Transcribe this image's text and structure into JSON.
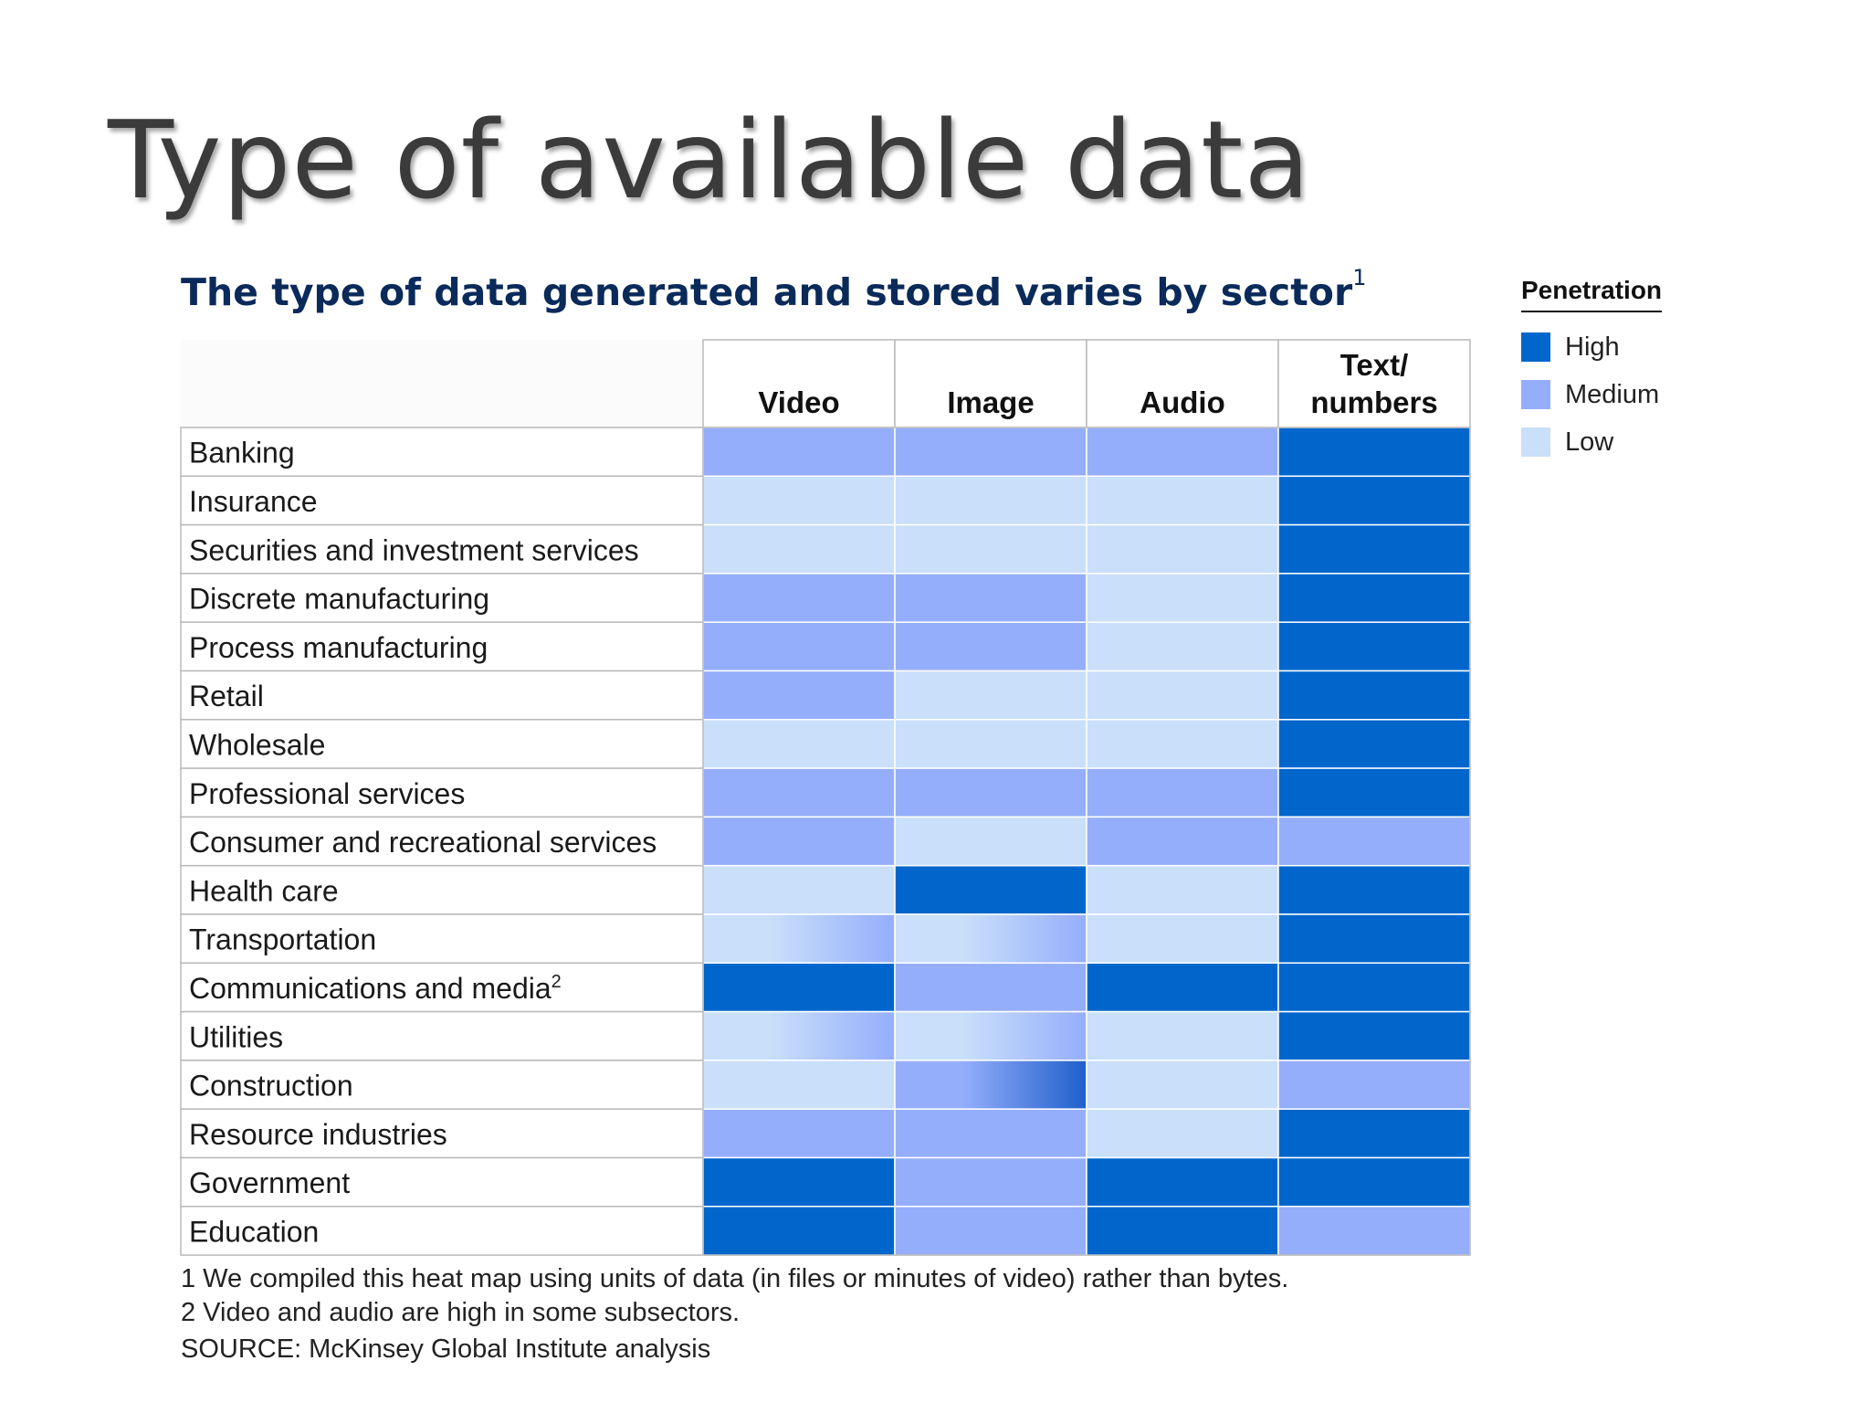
{
  "page": {
    "heading": "Type of available data"
  },
  "legend": {
    "title": "Penetration",
    "items": [
      {
        "label": "High",
        "color": "#0066cc"
      },
      {
        "label": "Medium",
        "color": "#95aefb"
      },
      {
        "label": "Low",
        "color": "#c9dffa"
      }
    ]
  },
  "footnotes": [
    "1  We compiled this heat map using units of data (in files or minutes of video) rather than bytes.",
    "2  Video and audio are high in some subsectors.",
    "SOURCE: McKinsey Global Institute analysis"
  ],
  "chart_data": {
    "type": "heatmap",
    "title": "The type of data generated and stored varies by sector",
    "title_footnote": "1",
    "columns": [
      "Video",
      "Image",
      "Audio",
      "Text/ numbers"
    ],
    "legend_title": "Penetration",
    "levels": [
      "High",
      "Medium",
      "Low"
    ],
    "rows": [
      {
        "sector": "Banking",
        "values": [
          "Medium",
          "Medium",
          "Medium",
          "High"
        ]
      },
      {
        "sector": "Insurance",
        "values": [
          "Low",
          "Low",
          "Low",
          "High"
        ]
      },
      {
        "sector": "Securities and investment services",
        "values": [
          "Low",
          "Low",
          "Low",
          "High"
        ]
      },
      {
        "sector": "Discrete manufacturing",
        "values": [
          "Medium",
          "Medium",
          "Low",
          "High"
        ]
      },
      {
        "sector": "Process manufacturing",
        "values": [
          "Medium",
          "Medium",
          "Low",
          "High"
        ]
      },
      {
        "sector": "Retail",
        "values": [
          "Medium",
          "Low",
          "Low",
          "High"
        ]
      },
      {
        "sector": "Wholesale",
        "values": [
          "Low",
          "Low",
          "Low",
          "High"
        ]
      },
      {
        "sector": "Professional services",
        "values": [
          "Medium",
          "Medium",
          "Medium",
          "High"
        ]
      },
      {
        "sector": "Consumer and recreational services",
        "values": [
          "Medium",
          "Low",
          "Medium",
          "Medium"
        ]
      },
      {
        "sector": "Health care",
        "values": [
          "Low",
          "High",
          "Low",
          "High"
        ]
      },
      {
        "sector": "Transportation",
        "values": [
          "Low-Medium",
          "Low-Medium",
          "Low",
          "High"
        ]
      },
      {
        "sector": "Communications and media",
        "sector_footnote": "2",
        "values": [
          "High",
          "Medium",
          "High",
          "High"
        ]
      },
      {
        "sector": "Utilities",
        "values": [
          "Low-Medium",
          "Low-Medium",
          "Low",
          "High"
        ]
      },
      {
        "sector": "Construction",
        "values": [
          "Low",
          "Medium-High",
          "Low",
          "Medium"
        ]
      },
      {
        "sector": "Resource industries",
        "values": [
          "Medium",
          "Medium",
          "Low",
          "High"
        ]
      },
      {
        "sector": "Government",
        "values": [
          "High",
          "Medium",
          "High",
          "High"
        ]
      },
      {
        "sector": "Education",
        "values": [
          "High",
          "Medium",
          "High",
          "Medium"
        ]
      }
    ]
  }
}
